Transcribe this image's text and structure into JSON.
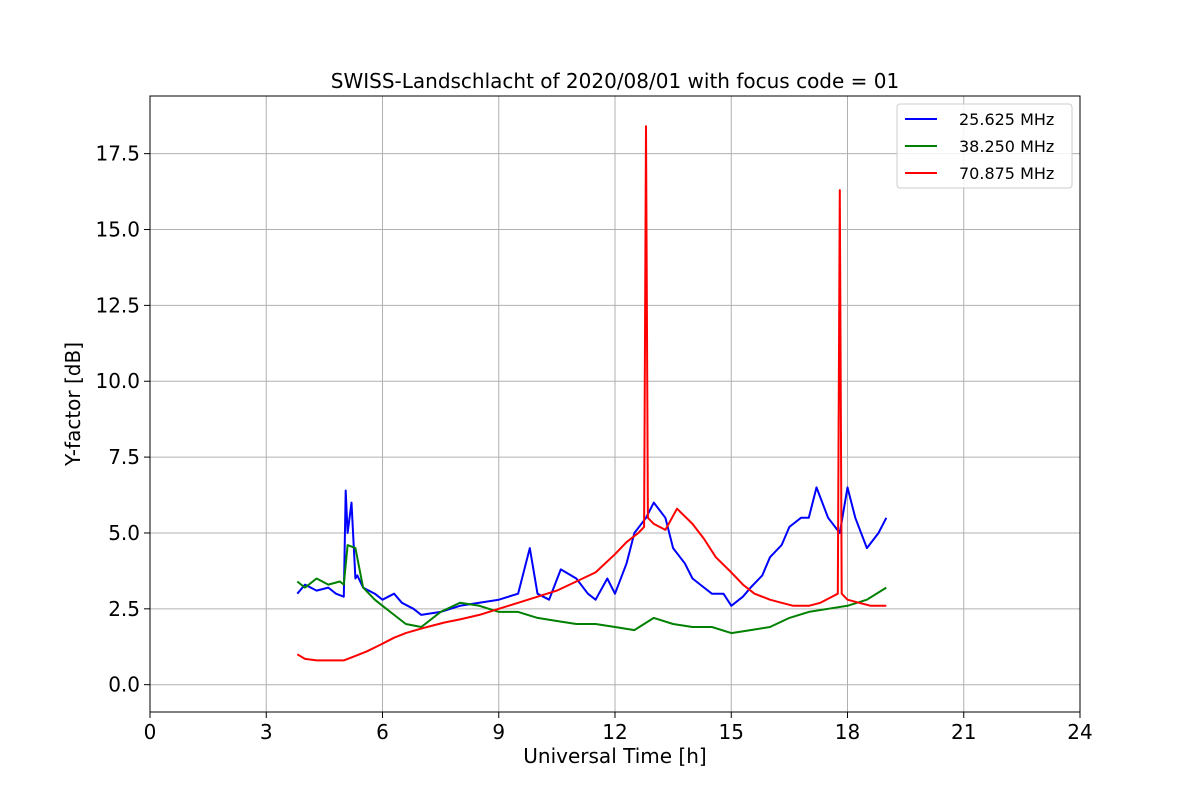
{
  "chart_data": {
    "type": "line",
    "title": "SWISS-Landschlacht of 2020/08/01 with focus code = 01",
    "xlabel": "Universal Time [h]",
    "ylabel": "Y-factor [dB]",
    "xlim": [
      0,
      24
    ],
    "ylim": [
      -0.9,
      19.4
    ],
    "xticks": [
      0,
      3,
      6,
      9,
      12,
      15,
      18,
      21,
      24
    ],
    "xtick_labels": [
      "0",
      "3",
      "6",
      "9",
      "12",
      "15",
      "18",
      "21",
      "24"
    ],
    "yticks": [
      0.0,
      2.5,
      5.0,
      7.5,
      10.0,
      12.5,
      15.0,
      17.5
    ],
    "ytick_labels": [
      "0.0",
      "2.5",
      "5.0",
      "7.5",
      "10.0",
      "12.5",
      "15.0",
      "17.5"
    ],
    "grid": true,
    "legend_position": "top-right",
    "series": [
      {
        "name": "25.625 MHz",
        "color": "#0000ff",
        "x": [
          3.8,
          4.0,
          4.3,
          4.6,
          4.8,
          5.0,
          5.05,
          5.1,
          5.2,
          5.3,
          5.35,
          5.5,
          5.8,
          6.0,
          6.3,
          6.5,
          6.8,
          7.0,
          7.5,
          8.0,
          8.5,
          9.0,
          9.5,
          9.8,
          10.0,
          10.3,
          10.6,
          11.0,
          11.3,
          11.5,
          11.8,
          12.0,
          12.3,
          12.5,
          12.8,
          13.0,
          13.3,
          13.5,
          13.8,
          14.0,
          14.3,
          14.5,
          14.8,
          15.0,
          15.3,
          15.5,
          15.8,
          16.0,
          16.3,
          16.5,
          16.8,
          17.0,
          17.2,
          17.5,
          17.8,
          18.0,
          18.2,
          18.5,
          18.8,
          19.0
        ],
        "values": [
          3.0,
          3.3,
          3.1,
          3.2,
          3.0,
          2.9,
          6.4,
          5.0,
          6.0,
          3.5,
          3.6,
          3.2,
          3.0,
          2.8,
          3.0,
          2.7,
          2.5,
          2.3,
          2.4,
          2.6,
          2.7,
          2.8,
          3.0,
          4.5,
          3.0,
          2.8,
          3.8,
          3.5,
          3.0,
          2.8,
          3.5,
          3.0,
          4.0,
          5.0,
          5.5,
          6.0,
          5.5,
          4.5,
          4.0,
          3.5,
          3.2,
          3.0,
          3.0,
          2.6,
          2.9,
          3.2,
          3.6,
          4.2,
          4.6,
          5.2,
          5.5,
          5.5,
          6.5,
          5.5,
          5.0,
          6.5,
          5.5,
          4.5,
          5.0,
          5.5
        ]
      },
      {
        "name": "38.250 MHz",
        "color": "#008000",
        "x": [
          3.8,
          4.0,
          4.3,
          4.6,
          4.9,
          5.0,
          5.1,
          5.3,
          5.5,
          5.8,
          6.0,
          6.3,
          6.6,
          7.0,
          7.5,
          8.0,
          8.5,
          9.0,
          9.5,
          10.0,
          10.5,
          11.0,
          11.5,
          12.0,
          12.5,
          13.0,
          13.5,
          14.0,
          14.5,
          15.0,
          15.5,
          16.0,
          16.5,
          17.0,
          17.5,
          18.0,
          18.5,
          19.0
        ],
        "values": [
          3.4,
          3.2,
          3.5,
          3.3,
          3.4,
          3.3,
          4.6,
          4.5,
          3.2,
          2.8,
          2.6,
          2.3,
          2.0,
          1.9,
          2.4,
          2.7,
          2.6,
          2.4,
          2.4,
          2.2,
          2.1,
          2.0,
          2.0,
          1.9,
          1.8,
          2.2,
          2.0,
          1.9,
          1.9,
          1.7,
          1.8,
          1.9,
          2.2,
          2.4,
          2.5,
          2.6,
          2.8,
          3.2
        ]
      },
      {
        "name": "70.875 MHz",
        "color": "#ff0000",
        "x": [
          3.8,
          4.0,
          4.3,
          4.6,
          5.0,
          5.3,
          5.6,
          6.0,
          6.3,
          6.6,
          7.0,
          7.3,
          7.6,
          8.0,
          8.5,
          9.0,
          9.5,
          10.0,
          10.5,
          11.0,
          11.5,
          12.0,
          12.3,
          12.6,
          12.75,
          12.8,
          12.85,
          13.0,
          13.3,
          13.6,
          14.0,
          14.3,
          14.6,
          15.0,
          15.3,
          15.6,
          16.0,
          16.3,
          16.6,
          17.0,
          17.3,
          17.6,
          17.75,
          17.8,
          17.85,
          18.0,
          18.3,
          18.6,
          19.0
        ],
        "values": [
          1.0,
          0.85,
          0.8,
          0.8,
          0.8,
          0.95,
          1.1,
          1.35,
          1.55,
          1.7,
          1.85,
          1.95,
          2.05,
          2.15,
          2.3,
          2.5,
          2.7,
          2.9,
          3.1,
          3.4,
          3.7,
          4.3,
          4.7,
          5.0,
          5.2,
          18.4,
          5.5,
          5.3,
          5.1,
          5.8,
          5.3,
          4.8,
          4.2,
          3.7,
          3.3,
          3.0,
          2.8,
          2.7,
          2.6,
          2.6,
          2.7,
          2.9,
          3.0,
          16.3,
          3.0,
          2.8,
          2.7,
          2.6,
          2.6
        ]
      }
    ]
  }
}
